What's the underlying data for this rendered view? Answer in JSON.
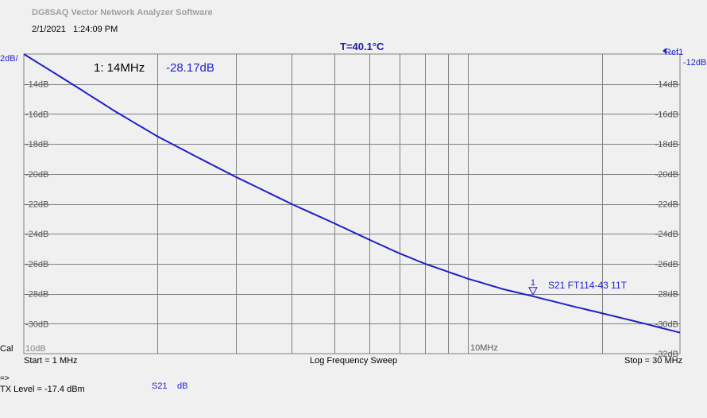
{
  "header": {
    "app_title": "DG8SAQ Vector Network Analyzer Software",
    "date": "2/1/2021",
    "time": "1:24:09 PM",
    "temperature": "T=40.1°C"
  },
  "plot": {
    "scale_label": "2dB/",
    "ref_label": "Ref1",
    "ref_value": "-12dB",
    "cal_label": "Cal",
    "left_bottom_overlap": "10dB",
    "freq_label_10mhz": "10MHz",
    "marker_readout_freq": "1: 14MHz",
    "marker_readout_value": "-28.17dB",
    "marker_number": "1",
    "trace_label": "S21 FT114-43 11T",
    "colors": {
      "trace": "#1f1fc8",
      "grid": "#808080",
      "background": "#f0f0f0",
      "text_blue": "#1f1fd0"
    }
  },
  "footer": {
    "start": "Start = 1 MHz",
    "sweep": "Log Frequency Sweep",
    "stop": "Stop = 30 MHz",
    "arrow": "=>",
    "tx_level": "TX Level = -17.4 dBm",
    "param": "S21",
    "unit": "dB"
  },
  "chart_data": {
    "type": "line",
    "x_scale": "log",
    "xlim_mhz": [
      1,
      30
    ],
    "ylim_db": [
      -32,
      -12
    ],
    "y_ticks": [
      "-14dB",
      "-16dB",
      "-18dB",
      "-20dB",
      "-22dB",
      "-24dB",
      "-26dB",
      "-28dB",
      "-30dB",
      "-32dB"
    ],
    "series": [
      {
        "name": "S21 FT114-43 11T",
        "x_mhz": [
          1,
          1.3,
          1.6,
          2,
          2.5,
          3,
          4,
          5,
          6,
          7,
          8,
          10,
          12,
          14,
          17,
          20,
          25,
          30
        ],
        "y_db": [
          -12.0,
          -14.1,
          -15.8,
          -17.5,
          -19.0,
          -20.2,
          -22.0,
          -23.3,
          -24.4,
          -25.3,
          -26.0,
          -27.0,
          -27.7,
          -28.17,
          -28.8,
          -29.3,
          -30.0,
          -30.6
        ]
      }
    ],
    "marker": {
      "id": "1",
      "x_mhz": 14,
      "y_db": -28.17
    }
  }
}
